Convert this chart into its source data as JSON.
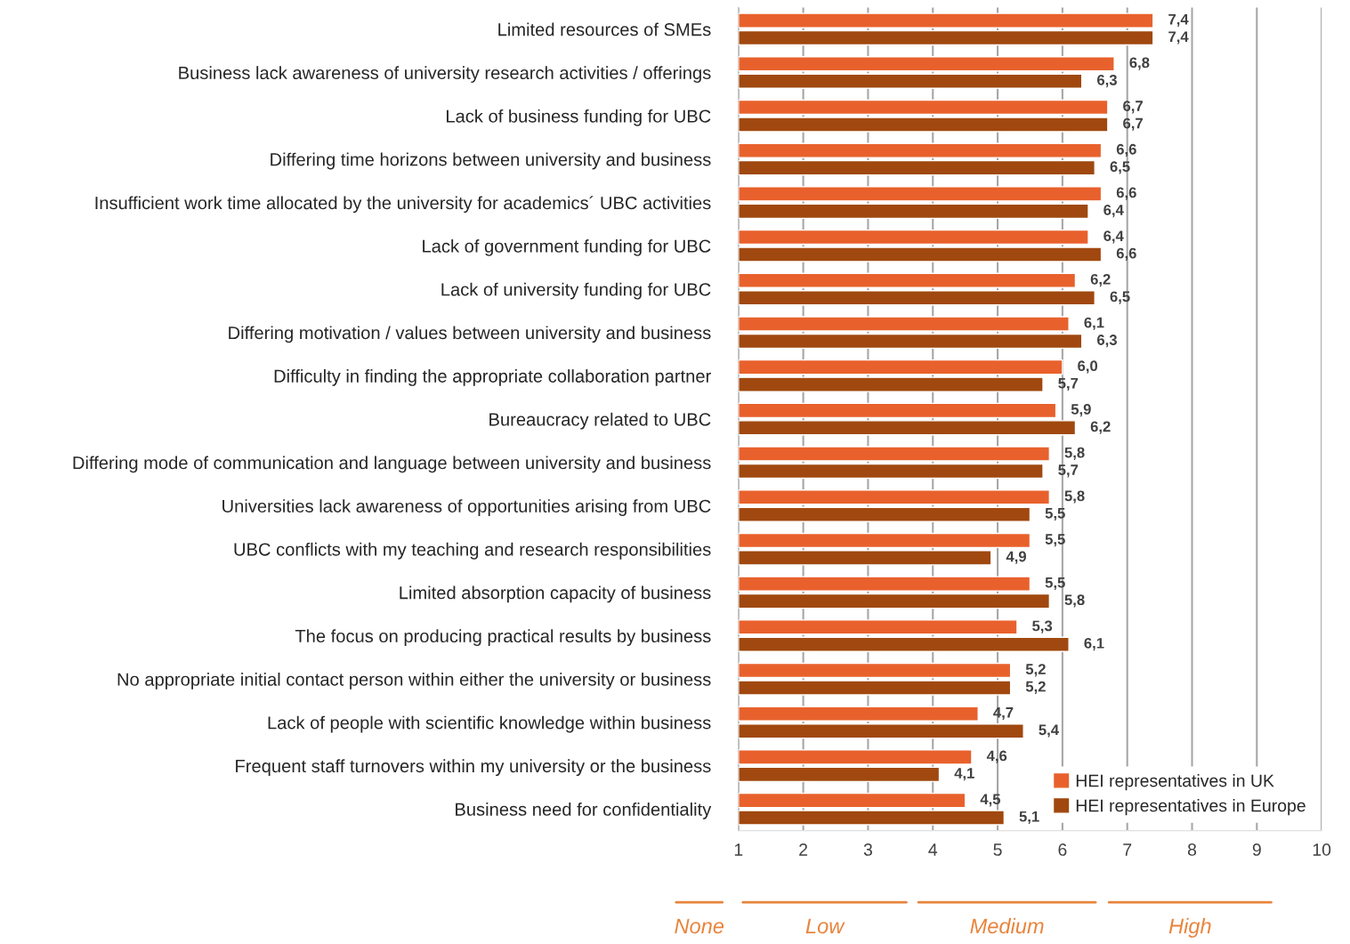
{
  "chart_data": {
    "type": "bar",
    "orientation": "horizontal",
    "categories": [
      "Limited resources of SMEs",
      "Business lack awareness of university research activities / offerings",
      "Lack of business funding for UBC",
      "Differing time horizons between university and business",
      "Insufficient work time allocated by the university for academics´ UBC activities",
      "Lack of government funding for UBC",
      "Lack of university funding for UBC",
      "Differing motivation / values between university and business",
      "Difficulty in finding the appropriate collaboration partner",
      "Bureaucracy related to UBC",
      "Differing mode of communication and language between university and business",
      "Universities lack awareness of opportunities arising from UBC",
      "UBC conflicts with my teaching and research responsibilities",
      "Limited absorption capacity of business",
      "The focus on producing practical results by business",
      "No appropriate initial contact person within either the university or business",
      "Lack of people with scientific knowledge within business",
      "Frequent staff turnovers within my university or the business",
      "Business need for confidentiality"
    ],
    "series": [
      {
        "name": "HEI representatives in UK",
        "color": "#e8612c",
        "values": [
          7.4,
          6.8,
          6.7,
          6.6,
          6.6,
          6.4,
          6.2,
          6.1,
          6.0,
          5.9,
          5.8,
          5.8,
          5.5,
          5.5,
          5.3,
          5.2,
          4.7,
          4.6,
          4.5
        ],
        "value_labels": [
          "7,4",
          "6,8",
          "6,7",
          "6,6",
          "6,6",
          "6,4",
          "6,2",
          "6,1",
          "6,0",
          "5,9",
          "5,8",
          "5,8",
          "5,5",
          "5,5",
          "5,3",
          "5,2",
          "4,7",
          "4,6",
          "4,5"
        ]
      },
      {
        "name": "HEI representatives in Europe",
        "color": "#a0480f",
        "values": [
          7.4,
          6.3,
          6.7,
          6.5,
          6.4,
          6.6,
          6.5,
          6.3,
          5.7,
          6.2,
          5.7,
          5.5,
          4.9,
          5.8,
          6.1,
          5.2,
          5.4,
          4.1,
          5.1
        ],
        "value_labels": [
          "7,4",
          "6,3",
          "6,7",
          "6,5",
          "6,4",
          "6,6",
          "6,5",
          "6,3",
          "5,7",
          "6,2",
          "5,7",
          "5,5",
          "4,9",
          "5,8",
          "6,1",
          "5,2",
          "5,4",
          "4,1",
          "5,1"
        ]
      }
    ],
    "xlim": [
      1,
      10
    ],
    "xticks": [
      1,
      2,
      3,
      4,
      5,
      6,
      7,
      8,
      9,
      10
    ],
    "grid": "x",
    "legend": "bottom right",
    "annotations": [
      "None",
      "Low",
      "Medium",
      "High"
    ]
  }
}
